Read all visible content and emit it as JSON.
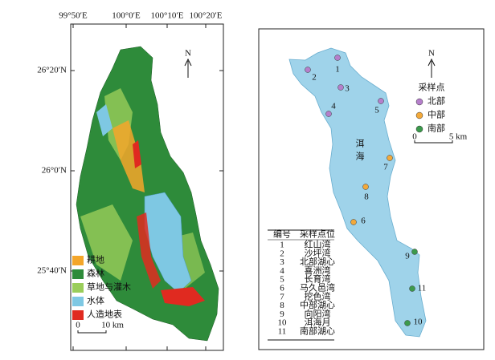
{
  "left_map": {
    "x_ticks": [
      "99°50′E",
      "100°0′E",
      "100°10′E",
      "100°20′E"
    ],
    "y_ticks": [
      "26°20′N",
      "26°0′N",
      "25°40′N"
    ],
    "north": "N",
    "legend": [
      {
        "label": "耕地",
        "color": "#f4a62a"
      },
      {
        "label": "森林",
        "color": "#2e8b3a"
      },
      {
        "label": "草地与灌木",
        "color": "#9acd5a"
      },
      {
        "label": "水体",
        "color": "#7ec8e3"
      },
      {
        "label": "人造地表",
        "color": "#e02a20"
      }
    ],
    "scale": {
      "start": "0",
      "end": "10 km"
    }
  },
  "right_map": {
    "north": "N",
    "lake_label": [
      "洱",
      "海"
    ],
    "legend_title": "采样点",
    "groups": [
      {
        "label": "北部",
        "color": "#b57fcb"
      },
      {
        "label": "中部",
        "color": "#f3a93a"
      },
      {
        "label": "南部",
        "color": "#3c9a4c"
      }
    ],
    "scale": {
      "start": "0",
      "end": "5 km"
    },
    "points": [
      {
        "label": "1",
        "group": 0
      },
      {
        "label": "2",
        "group": 0
      },
      {
        "label": "3",
        "group": 0
      },
      {
        "label": "4",
        "group": 0
      },
      {
        "label": "5",
        "group": 0
      },
      {
        "label": "6",
        "group": 1
      },
      {
        "label": "7",
        "group": 1
      },
      {
        "label": "8",
        "group": 1
      },
      {
        "label": "9",
        "group": 2
      },
      {
        "label": "10",
        "group": 2
      },
      {
        "label": "11",
        "group": 2
      }
    ],
    "table": {
      "header": [
        "编号",
        "采样点位"
      ],
      "rows": [
        [
          "1",
          "红山湾"
        ],
        [
          "2",
          "沙坪湾"
        ],
        [
          "3",
          "北部湖心"
        ],
        [
          "4",
          "喜洲湾"
        ],
        [
          "5",
          "长育湾"
        ],
        [
          "6",
          "马久邑湾"
        ],
        [
          "7",
          "挖色湾"
        ],
        [
          "8",
          "中部湖心"
        ],
        [
          "9",
          "向阳湾"
        ],
        [
          "10",
          "洱海月"
        ],
        [
          "11",
          "南部湖心"
        ]
      ]
    }
  }
}
